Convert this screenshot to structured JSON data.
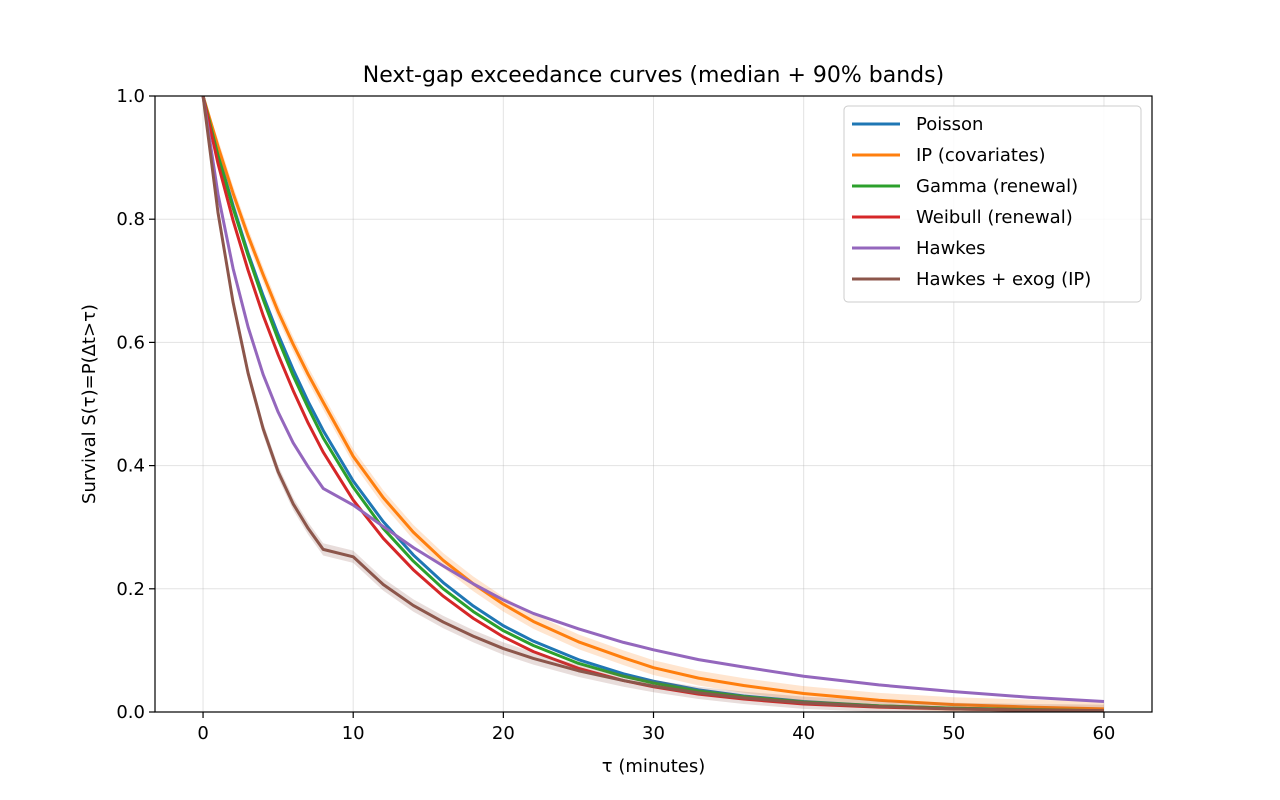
{
  "chart_data": {
    "type": "line",
    "title": "Next-gap exceedance curves (median + 90% bands)",
    "xlabel": "τ (minutes)",
    "ylabel": "Survival S(τ)=P(Δt>τ)",
    "xlim": [
      -3.2,
      63.2
    ],
    "ylim": [
      0,
      1
    ],
    "xticks": [
      0,
      10,
      20,
      30,
      40,
      50,
      60
    ],
    "xtick_labels": [
      "0",
      "10",
      "20",
      "30",
      "40",
      "50",
      "60"
    ],
    "yticks": [
      0.0,
      0.2,
      0.4,
      0.6,
      0.8,
      1.0
    ],
    "ytick_labels": [
      "0.0",
      "0.2",
      "0.4",
      "0.6",
      "0.8",
      "1.0"
    ],
    "grid": true,
    "legend_position": "top-right",
    "x": [
      0,
      1,
      2,
      3,
      4,
      5,
      6,
      7,
      8,
      10,
      12,
      14,
      16,
      18,
      20,
      22,
      25,
      28,
      30,
      33,
      36,
      40,
      45,
      50,
      55,
      60
    ],
    "series": [
      {
        "name": "Poisson",
        "color": "#1f77b4",
        "band_width": 0,
        "values": [
          1.0,
          0.907,
          0.822,
          0.745,
          0.676,
          0.613,
          0.556,
          0.504,
          0.457,
          0.375,
          0.309,
          0.255,
          0.21,
          0.172,
          0.14,
          0.115,
          0.085,
          0.062,
          0.05,
          0.036,
          0.026,
          0.017,
          0.01,
          0.006,
          0.004,
          0.002
        ]
      },
      {
        "name": "IP (covariates)",
        "color": "#ff7f0e",
        "band_width": 0.012,
        "values": [
          1.0,
          0.918,
          0.842,
          0.773,
          0.71,
          0.65,
          0.597,
          0.548,
          0.503,
          0.415,
          0.348,
          0.292,
          0.246,
          0.208,
          0.175,
          0.147,
          0.114,
          0.088,
          0.072,
          0.055,
          0.043,
          0.03,
          0.019,
          0.012,
          0.008,
          0.005
        ]
      },
      {
        "name": "Gamma (renewal)",
        "color": "#2ca02c",
        "band_width": 0,
        "values": [
          1.0,
          0.903,
          0.818,
          0.741,
          0.67,
          0.605,
          0.546,
          0.494,
          0.445,
          0.365,
          0.298,
          0.245,
          0.2,
          0.163,
          0.132,
          0.108,
          0.079,
          0.058,
          0.047,
          0.034,
          0.025,
          0.016,
          0.01,
          0.006,
          0.004,
          0.002
        ]
      },
      {
        "name": "Weibull (renewal)",
        "color": "#d62728",
        "band_width": 0,
        "values": [
          1.0,
          0.89,
          0.798,
          0.717,
          0.644,
          0.58,
          0.522,
          0.469,
          0.422,
          0.344,
          0.282,
          0.231,
          0.188,
          0.152,
          0.122,
          0.098,
          0.071,
          0.051,
          0.041,
          0.029,
          0.021,
          0.013,
          0.008,
          0.005,
          0.003,
          0.002
        ]
      },
      {
        "name": "Hawkes",
        "color": "#9467bd",
        "band_width": 0,
        "values": [
          1.0,
          0.84,
          0.72,
          0.625,
          0.548,
          0.487,
          0.437,
          0.398,
          0.363,
          0.336,
          0.301,
          0.267,
          0.237,
          0.208,
          0.182,
          0.16,
          0.135,
          0.113,
          0.101,
          0.085,
          0.073,
          0.058,
          0.044,
          0.033,
          0.024,
          0.017
        ]
      },
      {
        "name": "Hawkes + exog (IP)",
        "color": "#8c564b",
        "band_width": 0.01,
        "values": [
          1.0,
          0.81,
          0.665,
          0.55,
          0.46,
          0.39,
          0.338,
          0.298,
          0.264,
          0.252,
          0.207,
          0.173,
          0.146,
          0.123,
          0.103,
          0.087,
          0.067,
          0.051,
          0.042,
          0.031,
          0.023,
          0.015,
          0.009,
          0.005,
          0.003,
          0.002
        ]
      }
    ]
  }
}
